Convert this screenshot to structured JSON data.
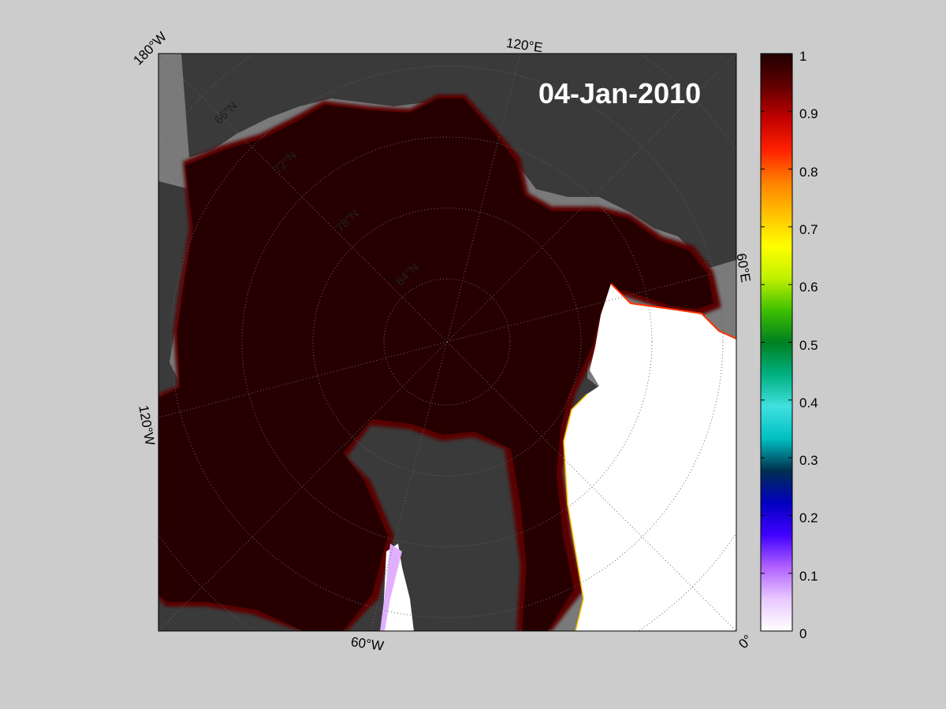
{
  "map": {
    "date": "04-Jan-2010",
    "lon_labels": {
      "l180w": "180°W",
      "l120e": "120°E",
      "l60e": "60°E",
      "l120w": "120°W",
      "l60w": "60°W",
      "l0": "0°"
    },
    "lat_labels": [
      "66°N",
      "72°N",
      "78°N",
      "84°N"
    ],
    "colors": {
      "ocean_no_data": "#7a7a7a",
      "land": "#3a3a3a",
      "ice_full": "#2a0000",
      "open_water": "#ffffff"
    }
  },
  "colorbar": {
    "ticks": [
      "1",
      "0.9",
      "0.8",
      "0.7",
      "0.6",
      "0.5",
      "0.4",
      "0.3",
      "0.2",
      "0.1",
      "0"
    ],
    "colormap": [
      "#ffffff",
      "#e8c8ff",
      "#b060ff",
      "#4000ff",
      "#0000c0",
      "#003050",
      "#00c0c0",
      "#40e0e0",
      "#00b080",
      "#008020",
      "#40c000",
      "#c0f000",
      "#ffff00",
      "#ffc000",
      "#ff8000",
      "#ff2000",
      "#c00000",
      "#600000",
      "#200000"
    ]
  }
}
